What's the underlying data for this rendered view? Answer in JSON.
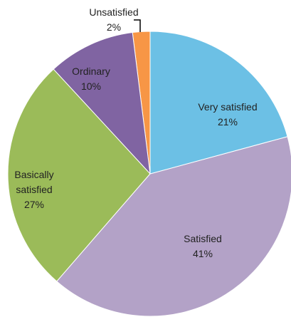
{
  "chart_data": {
    "type": "pie",
    "categories": [
      "Very satisfied",
      "Satisfied",
      "Basically satisfied",
      "Ordinary",
      "Unsatisfied"
    ],
    "values": [
      21,
      41,
      27,
      10,
      2
    ],
    "value_labels": [
      "21%",
      "41%",
      "27%",
      "10%",
      "2%"
    ],
    "colors": [
      "#6cc0e5",
      "#b3a2c7",
      "#9bbb59",
      "#8064a2",
      "#f79646"
    ]
  }
}
